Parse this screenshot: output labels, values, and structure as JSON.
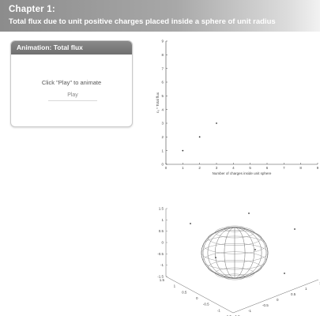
{
  "header": {
    "title": "Chapter 1:",
    "subtitle": "Total flux due to unit positive charges placed inside a sphere of unit radius"
  },
  "panel": {
    "title": "Animation: Total flux",
    "hint": "Click \"Play\" to animate",
    "play_label": "Play"
  },
  "chart_data": [
    {
      "type": "scatter",
      "title": "",
      "xlabel": "Number of charges inside unit sphere",
      "ylabel": "ε₀ * Total flux",
      "xlim": [
        0,
        9
      ],
      "ylim": [
        0,
        9
      ],
      "x_ticks": [
        0,
        1,
        2,
        3,
        4,
        5,
        6,
        7,
        8,
        9
      ],
      "y_ticks": [
        0,
        1,
        2,
        3,
        4,
        5,
        6,
        7,
        8,
        9
      ],
      "points": [
        [
          1,
          1
        ],
        [
          2,
          2
        ],
        [
          3,
          3
        ]
      ]
    },
    {
      "type": "scatter",
      "title": "",
      "description_type": "3d-sphere-with-charges",
      "z_ticks": [
        "1.5",
        "1",
        "0.5",
        "0",
        "-0.5",
        "-1",
        "-1.5"
      ],
      "y_ticks": [
        "1.5",
        "1",
        "0.5",
        "0",
        "-0.5",
        "-1",
        "-1.5"
      ],
      "x_ticks": [
        "-1.5",
        "-1",
        "-0.5",
        "0",
        "0.5",
        "1",
        "1.5"
      ]
    }
  ]
}
